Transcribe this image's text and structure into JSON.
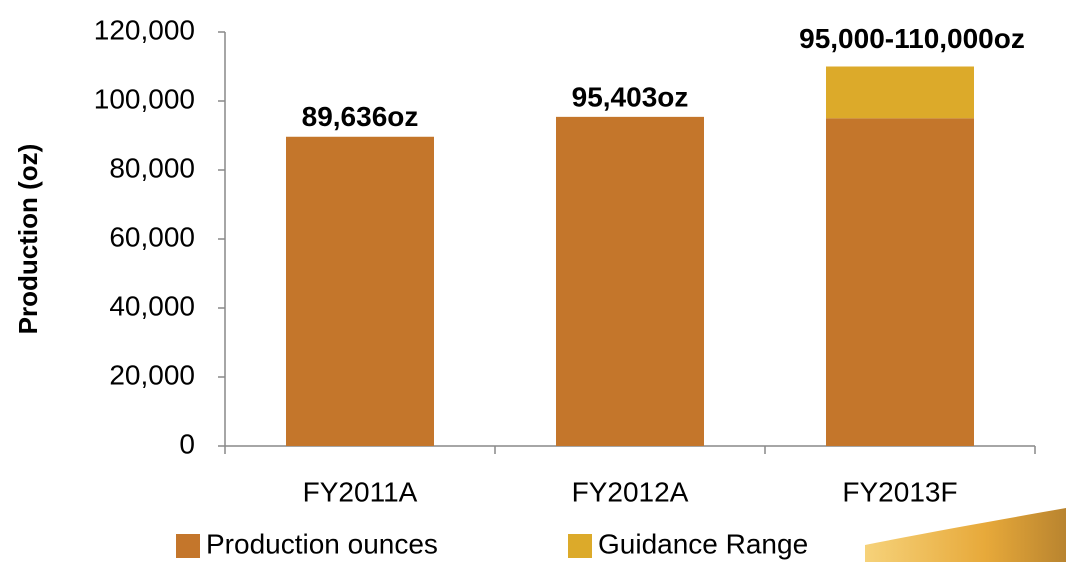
{
  "chart_data": {
    "type": "bar",
    "stacked": true,
    "y_label": "Production (oz)",
    "categories": [
      "FY2011A",
      "FY2012A",
      "FY2013F"
    ],
    "series": [
      {
        "name": "Production ounces",
        "color": "#c4762b",
        "values": [
          89636,
          95403,
          95000
        ],
        "value_labels": [
          "89,636oz",
          "95,403oz",
          null
        ]
      },
      {
        "name": "Guidance Range",
        "color": "#dcaa2a",
        "values": [
          null,
          null,
          15000
        ]
      }
    ],
    "annotations": [
      "95,000-110,000oz"
    ],
    "ylim": [
      0,
      120000
    ],
    "yticks": [
      0,
      {
        "value": 20000,
        "label": "20,000"
      },
      {
        "value": 40000,
        "label": "40,000"
      },
      {
        "value": 60000,
        "label": "60,000"
      },
      {
        "value": 80000,
        "label": "80,000"
      },
      {
        "value": 100000,
        "label": "100,000"
      },
      {
        "value": 120000,
        "label": "120,000"
      }
    ],
    "grid": false
  }
}
